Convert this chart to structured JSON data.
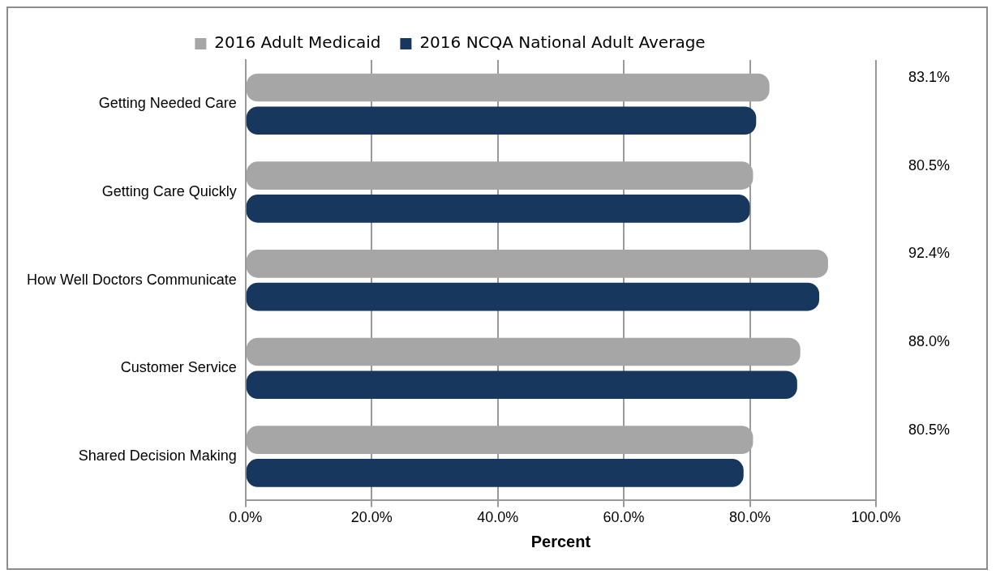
{
  "chart_data": {
    "type": "bar",
    "orientation": "horizontal",
    "xlabel": "Percent",
    "categories": [
      "Getting Needed Care",
      "Getting Care Quickly",
      "How Well Doctors Communicate",
      "Customer Service",
      "Shared Decision Making"
    ],
    "series": [
      {
        "name": "2016 Adult Medicaid",
        "color": "#a6a6a6",
        "values": [
          83.1,
          80.5,
          92.4,
          88.0,
          80.5
        ],
        "value_labels": [
          "83.1%",
          "80.5%",
          "92.4%",
          "88.0%",
          "80.5%"
        ]
      },
      {
        "name": "2016 NCQA National Adult Average",
        "color": "#17375e",
        "values": [
          81.0,
          80.0,
          91.0,
          87.5,
          79.0
        ]
      }
    ],
    "xlim": [
      0,
      100
    ],
    "xticks": [
      {
        "value": 0,
        "label": "0.0%"
      },
      {
        "value": 20,
        "label": "20.0%"
      },
      {
        "value": 40,
        "label": "40.0%"
      },
      {
        "value": 60,
        "label": "60.0%"
      },
      {
        "value": 80,
        "label": "80.0%"
      },
      {
        "value": 100,
        "label": "100.0%"
      }
    ],
    "grid": "x",
    "legend": "top"
  }
}
